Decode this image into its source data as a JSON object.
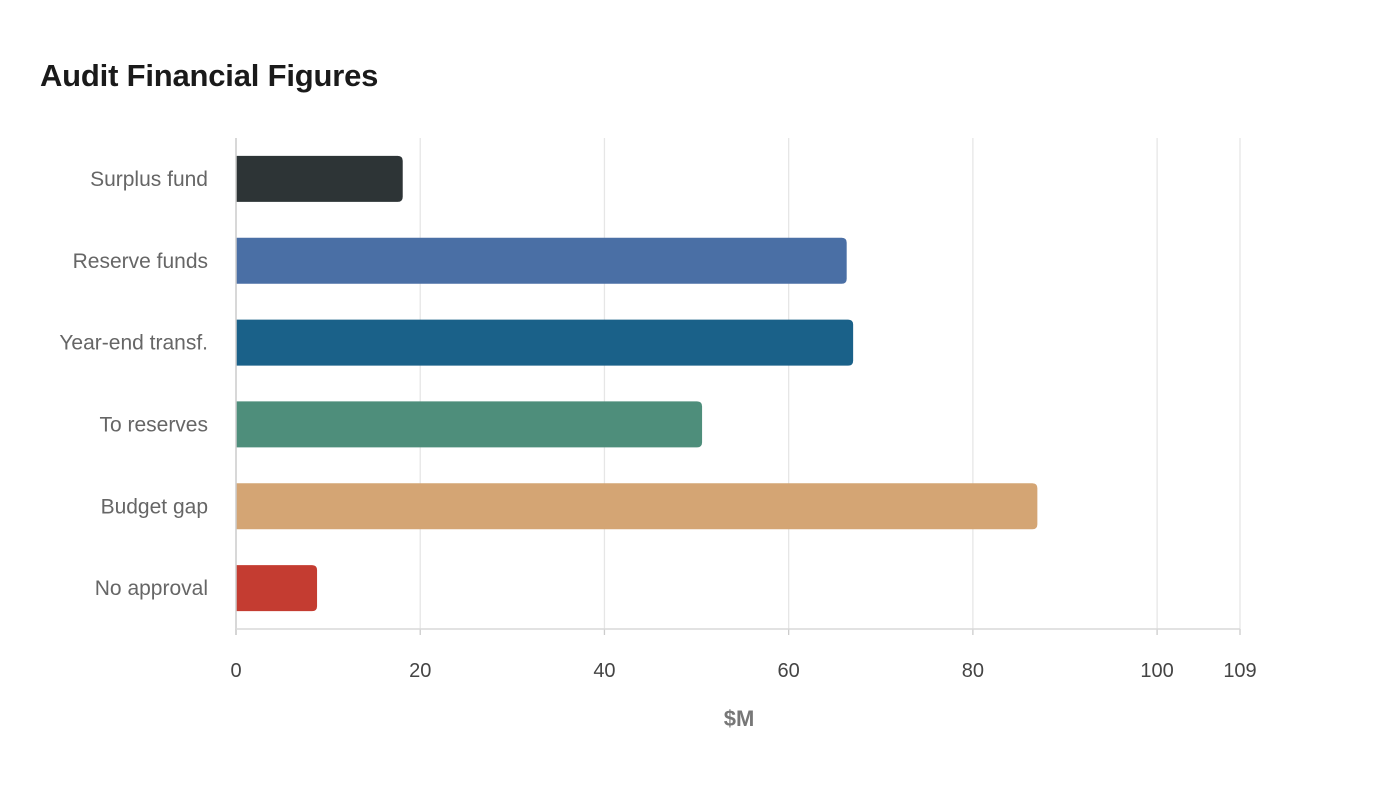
{
  "chart_data": {
    "type": "bar",
    "orientation": "horizontal",
    "title": "Audit Financial Figures",
    "xlabel": "$M",
    "ylabel": "",
    "categories": [
      "Surplus fund",
      "Reserve funds",
      "Year-end transf.",
      "To reserves",
      "Budget gap",
      "No approval"
    ],
    "values": [
      18.1,
      66.3,
      67.0,
      50.6,
      87.0,
      8.8
    ],
    "colors": [
      "#2d3436",
      "#4a6fa5",
      "#1a6189",
      "#4e8e7b",
      "#d4a574",
      "#c43c31"
    ],
    "xlim": [
      0,
      109
    ],
    "xticks": [
      0,
      20,
      40,
      60,
      80,
      100,
      109
    ],
    "grid": true,
    "legend": "none"
  }
}
